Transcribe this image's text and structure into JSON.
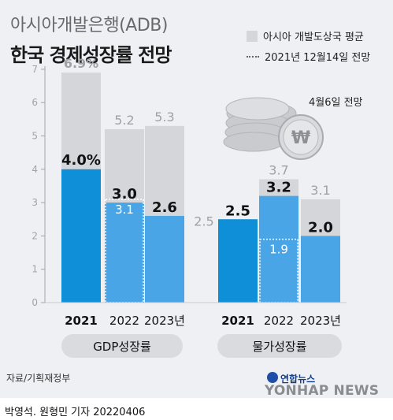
{
  "header": {
    "title_line1": "아시아개발은행(ADB)",
    "title_line2": "한국 경제성장률 전망"
  },
  "legend": {
    "item1": "아시아 개발도상국 평균",
    "item2": "2021년 12월14일 전망"
  },
  "note": "4월6일 전망",
  "colors": {
    "bar_dark": "#0f8fd8",
    "bar_light": "#4aa5e6",
    "bar_gray": "#d4d6da",
    "panel_bg": "#eef0f3"
  },
  "chart_data": [
    {
      "type": "bar",
      "group_label": "GDP성장률",
      "categories": [
        "2021",
        "2022",
        "2023년"
      ],
      "series": [
        {
          "name": "",
          "values": [
            4.0,
            3.0,
            2.6
          ]
        },
        {
          "name": "아시아 개발도상국 평균",
          "values": [
            6.9,
            5.2,
            5.3
          ]
        },
        {
          "name": "2021년 12월14일 전망",
          "values": [
            null,
            3.1,
            null
          ]
        }
      ],
      "value_labels": [
        "4.0%",
        "3.0",
        "2.6"
      ],
      "avg_labels": [
        "6.9%",
        "5.2",
        "5.3"
      ],
      "prev_labels": [
        "",
        "3.1",
        ""
      ],
      "yticks": [
        "0",
        "1",
        "2",
        "3",
        "4",
        "5",
        "6",
        "7"
      ],
      "ylim": [
        0,
        7
      ]
    },
    {
      "type": "bar",
      "group_label": "물가성장률",
      "categories": [
        "2021",
        "2022",
        "2023년"
      ],
      "series": [
        {
          "name": "",
          "values": [
            2.5,
            3.2,
            2.0
          ]
        },
        {
          "name": "아시아 개발도상국 평균",
          "values": [
            2.5,
            3.7,
            3.1
          ]
        },
        {
          "name": "2021년 12월14일 전망",
          "values": [
            null,
            1.9,
            null
          ]
        }
      ],
      "value_labels": [
        "2.5",
        "3.2",
        "2.0"
      ],
      "avg_labels": [
        "2.5",
        "3.7",
        "3.1"
      ],
      "prev_labels": [
        "",
        "1.9",
        ""
      ],
      "ylim": [
        0,
        7
      ]
    }
  ],
  "footer": {
    "source": "자료/기획재정부",
    "credit": "박영석. 원형민 기자  20220406",
    "brand_small": "연합뉴스",
    "brand_big": "YONHAP NEWS"
  }
}
